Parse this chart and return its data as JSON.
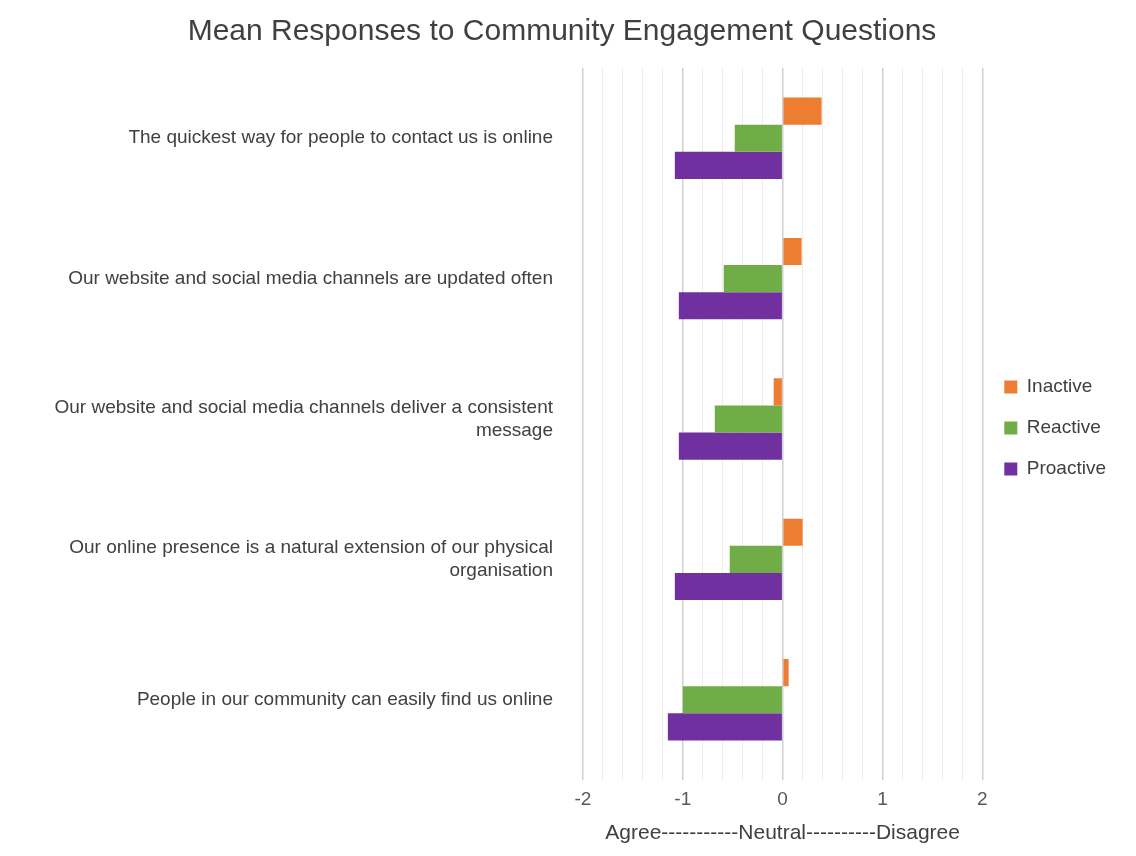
{
  "chart_data": {
    "type": "bar",
    "orientation": "horizontal",
    "title": "Mean Responses to Community Engagement Questions",
    "xlabel": "Agree-----------Neutral----------Disagree",
    "categories": [
      "The quickest way for people to contact us is online",
      "Our website and social media channels are updated often",
      "Our website and social media channels deliver a consistent message",
      "Our online presence is a natural extension of our physical organisation",
      "People in our community can easily find us online"
    ],
    "series": [
      {
        "name": "Inactive",
        "color": "#ed7d31",
        "values": [
          0.39,
          0.19,
          -0.09,
          0.2,
          0.06
        ]
      },
      {
        "name": "Reactive",
        "color": "#70ad47",
        "values": [
          -0.48,
          -0.59,
          -0.68,
          -0.53,
          -1.0
        ]
      },
      {
        "name": "Proactive",
        "color": "#7030a0",
        "values": [
          -1.08,
          -1.04,
          -1.04,
          -1.08,
          -1.15
        ]
      }
    ],
    "xlim": [
      -2,
      2
    ],
    "xticks": [
      -2,
      {
        "value": -1.8,
        "label": null
      },
      {
        "value": -1.6,
        "label": null
      },
      {
        "value": -1.4,
        "label": null
      },
      {
        "value": -1.2,
        "label": null
      },
      -1,
      {
        "value": -0.8,
        "label": null
      },
      {
        "value": -0.6,
        "label": null
      },
      {
        "value": -0.4,
        "label": null
      },
      {
        "value": -0.2,
        "label": null
      },
      0,
      {
        "value": 0.2,
        "label": null
      },
      {
        "value": 0.4,
        "label": null
      },
      {
        "value": 0.6,
        "label": null
      },
      {
        "value": 0.8,
        "label": null
      },
      1,
      {
        "value": 1.2,
        "label": null
      },
      {
        "value": 1.4,
        "label": null
      },
      {
        "value": 1.6,
        "label": null
      },
      {
        "value": 1.8,
        "label": null
      },
      2
    ],
    "grid": "x",
    "legend": "right"
  }
}
